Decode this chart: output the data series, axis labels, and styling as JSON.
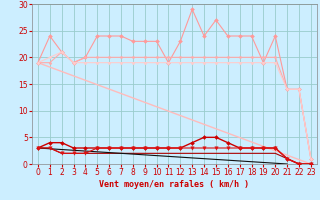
{
  "bg_color": "#cceeff",
  "grid_color": "#99cccc",
  "xlabel": "Vent moyen/en rafales ( km/h )",
  "xlabel_color": "#cc0000",
  "tick_color": "#cc0000",
  "xlim": [
    -0.5,
    23.5
  ],
  "ylim": [
    0,
    30
  ],
  "yticks": [
    0,
    5,
    10,
    15,
    20,
    25,
    30
  ],
  "xticks": [
    0,
    1,
    2,
    3,
    4,
    5,
    6,
    7,
    8,
    9,
    10,
    11,
    12,
    13,
    14,
    15,
    16,
    17,
    18,
    19,
    20,
    21,
    22,
    23
  ],
  "lines": [
    {
      "x": [
        0,
        1,
        2,
        3,
        4,
        5,
        6,
        7,
        8,
        9,
        10,
        11,
        12,
        13,
        14,
        15,
        16,
        17,
        18,
        19,
        20,
        21,
        22,
        23
      ],
      "y": [
        19,
        24,
        21,
        19,
        20,
        24,
        24,
        24,
        23,
        23,
        23,
        19,
        23,
        29,
        24,
        27,
        24,
        24,
        24,
        19,
        24,
        14,
        14,
        1
      ],
      "color": "#ff9999",
      "marker": "D",
      "lw": 0.8,
      "ms": 2.0,
      "zorder": 3
    },
    {
      "x": [
        0,
        1,
        2,
        3,
        4,
        5,
        6,
        7,
        8,
        9,
        10,
        11,
        12,
        13,
        14,
        15,
        16,
        17,
        18,
        19,
        20,
        21,
        22,
        23
      ],
      "y": [
        19,
        19,
        21,
        19,
        20,
        20,
        20,
        20,
        20,
        20,
        20,
        20,
        20,
        20,
        20,
        20,
        20,
        20,
        20,
        20,
        20,
        14,
        14,
        1
      ],
      "color": "#ffaaaa",
      "marker": "D",
      "lw": 0.8,
      "ms": 1.5,
      "zorder": 3
    },
    {
      "x": [
        0,
        23
      ],
      "y": [
        19,
        0
      ],
      "color": "#ffbbbb",
      "marker": null,
      "lw": 1.0,
      "ms": 0,
      "zorder": 2
    },
    {
      "x": [
        0,
        1,
        2,
        3,
        4,
        5,
        6,
        7,
        8,
        9,
        10,
        11,
        12,
        13,
        14,
        15,
        16,
        17,
        18,
        19,
        20,
        21,
        22,
        23
      ],
      "y": [
        19,
        20,
        21,
        19,
        19,
        19,
        19,
        19,
        19,
        19,
        19,
        19,
        19,
        19,
        19,
        19,
        19,
        19,
        19,
        19,
        19,
        14,
        14,
        1
      ],
      "color": "#ffcccc",
      "marker": "D",
      "lw": 0.8,
      "ms": 1.5,
      "zorder": 3
    },
    {
      "x": [
        0,
        1,
        2,
        3,
        4,
        5,
        6,
        7,
        8,
        9,
        10,
        11,
        12,
        13,
        14,
        15,
        16,
        17,
        18,
        19,
        20,
        21,
        22,
        23
      ],
      "y": [
        3,
        4,
        4,
        3,
        3,
        3,
        3,
        3,
        3,
        3,
        3,
        3,
        3,
        4,
        5,
        5,
        4,
        3,
        3,
        3,
        3,
        1,
        0,
        0
      ],
      "color": "#cc0000",
      "marker": "D",
      "lw": 1.0,
      "ms": 2.0,
      "zorder": 5
    },
    {
      "x": [
        0,
        1,
        2,
        3,
        4,
        5,
        6,
        7,
        8,
        9,
        10,
        11,
        12,
        13,
        14,
        15,
        16,
        17,
        18,
        19,
        20,
        21,
        22,
        23
      ],
      "y": [
        3,
        3,
        2,
        2,
        2,
        3,
        3,
        3,
        3,
        3,
        3,
        3,
        3,
        3,
        3,
        3,
        3,
        3,
        3,
        3,
        3,
        1,
        0,
        0
      ],
      "color": "#dd1111",
      "marker": "v",
      "lw": 0.8,
      "ms": 2.5,
      "zorder": 5
    },
    {
      "x": [
        0,
        1,
        2,
        3,
        4,
        5,
        6,
        7,
        8,
        9,
        10,
        11,
        12,
        13,
        14,
        15,
        16,
        17,
        18,
        19,
        20,
        21,
        22,
        23
      ],
      "y": [
        3,
        3,
        2,
        2,
        2,
        2,
        2,
        2,
        2,
        2,
        2,
        2,
        2,
        2,
        2,
        2,
        2,
        2,
        2,
        2,
        2,
        1,
        0,
        0
      ],
      "color": "#aa0000",
      "marker": null,
      "lw": 0.8,
      "ms": 0,
      "zorder": 4
    },
    {
      "x": [
        0,
        21
      ],
      "y": [
        3,
        0
      ],
      "color": "#111111",
      "marker": null,
      "lw": 0.8,
      "ms": 0,
      "zorder": 4
    }
  ]
}
